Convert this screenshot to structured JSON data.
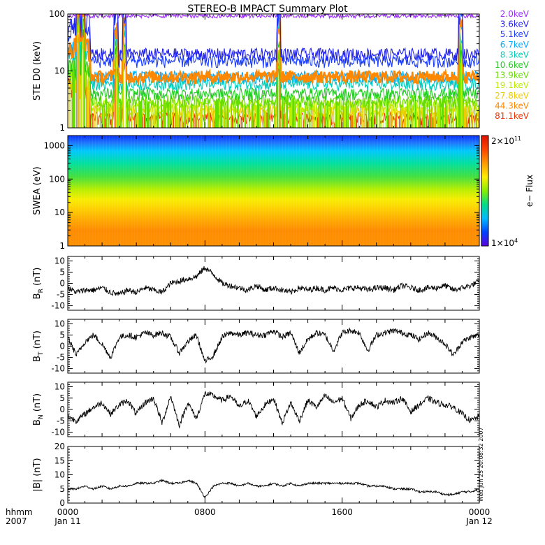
{
  "title": "STEREO-B IMPACT Summary Plot",
  "time_axis": {
    "row1_label": "hhmm",
    "row2_label": "2007",
    "ticks": [
      {
        "hour": 0,
        "label": "0000",
        "date": "Jan 11"
      },
      {
        "hour": 8,
        "label": "0800",
        "date": ""
      },
      {
        "hour": 16,
        "label": "1600",
        "date": ""
      },
      {
        "hour": 24,
        "label": "0000",
        "date": "Jan 12"
      }
    ],
    "range_hours": [
      0,
      24
    ]
  },
  "colors": {
    "frame": "#000000",
    "trace": "#000000",
    "background": "#ffffff"
  },
  "stamp": "Wed Jun 25 20:08:32 2007",
  "chart_data": [
    {
      "type": "line",
      "panel": "ste",
      "ylabel": "STE D0 (keV)",
      "yscale": "log",
      "ylim": [
        1,
        100
      ],
      "yticks": [
        {
          "v": 1,
          "label": "1"
        },
        {
          "v": 10,
          "label": "10"
        },
        {
          "v": 100,
          "label": "100"
        }
      ],
      "series": [
        {
          "name": "2.0keV",
          "color": "#9b30ff",
          "level": 100
        },
        {
          "name": "3.6keV",
          "color": "#2222ee",
          "level": 20
        },
        {
          "name": "5.1keV",
          "color": "#1a3cff",
          "level": 15
        },
        {
          "name": "6.7keV",
          "color": "#00aaff",
          "level": 8
        },
        {
          "name": "8.3keV",
          "color": "#00ccbb",
          "level": 6
        },
        {
          "name": "10.6keV",
          "color": "#22cc22",
          "level": 4
        },
        {
          "name": "13.9keV",
          "color": "#66dd00",
          "level": 3
        },
        {
          "name": "19.1keV",
          "color": "#bbee00",
          "level": 2.5
        },
        {
          "name": "27.8keV",
          "color": "#eecc00",
          "level": 2
        },
        {
          "name": "44.3keV",
          "color": "#ff8800",
          "level": 8
        },
        {
          "name": "81.1keV",
          "color": "#ee3300",
          "level": 1.5
        }
      ],
      "events_hours": [
        0.6,
        0.9,
        2.8,
        3.3,
        12.3,
        22.9
      ]
    },
    {
      "type": "heatmap",
      "panel": "swea",
      "ylabel": "SWEA (eV)",
      "yscale": "log",
      "ylim": [
        1,
        2000
      ],
      "yticks": [
        {
          "v": 1,
          "label": "1"
        },
        {
          "v": 10,
          "label": "10"
        },
        {
          "v": 100,
          "label": "100"
        },
        {
          "v": 1000,
          "label": "1000"
        }
      ],
      "colorbar": {
        "label": "e− Flux",
        "min_label": "1×10",
        "min_exp": "4",
        "max_label": "2×10",
        "max_exp": "11",
        "range": [
          10000,
          200000000000
        ],
        "stops": [
          "#5b00e0",
          "#0044ff",
          "#00bbff",
          "#00dd88",
          "#88ee00",
          "#ffee00",
          "#ff9900",
          "#ff4400",
          "#dd1100"
        ]
      },
      "energy_color_profile": [
        {
          "energy": 2000,
          "color": "#0a32ff"
        },
        {
          "energy": 1200,
          "color": "#1e78ff"
        },
        {
          "energy": 700,
          "color": "#00c8ff"
        },
        {
          "energy": 300,
          "color": "#00e0a0"
        },
        {
          "energy": 120,
          "color": "#40e040"
        },
        {
          "energy": 50,
          "color": "#b4ee00"
        },
        {
          "energy": 25,
          "color": "#f8ee00"
        },
        {
          "energy": 12,
          "color": "#ffcc00"
        },
        {
          "energy": 6,
          "color": "#ffaa00"
        },
        {
          "energy": 3,
          "color": "#ff8c00"
        },
        {
          "energy": 1,
          "color": "#ff9000"
        }
      ]
    },
    {
      "type": "line",
      "panel": "br",
      "ylabel": "B",
      "ylabel_sub": "R",
      "ylabel_unit": "(nT)",
      "ylim": [
        -12,
        12
      ],
      "yticks": [
        {
          "v": -10,
          "label": "-10"
        },
        {
          "v": -5,
          "label": "-5"
        },
        {
          "v": 0,
          "label": "0"
        },
        {
          "v": 5,
          "label": "5"
        },
        {
          "v": 10,
          "label": "10"
        }
      ],
      "x": [
        0,
        0.5,
        1,
        1.5,
        2,
        2.5,
        3,
        3.5,
        4,
        4.5,
        5,
        5.5,
        6,
        6.5,
        7,
        7.5,
        8,
        8.5,
        9,
        9.5,
        10,
        10.5,
        11,
        11.5,
        12,
        12.5,
        13,
        13.5,
        14,
        14.5,
        15,
        15.5,
        16,
        16.5,
        17,
        17.5,
        18,
        18.5,
        19,
        19.5,
        20,
        20.5,
        21,
        21.5,
        22,
        22.5,
        23,
        23.5,
        24
      ],
      "values": [
        -2,
        -4,
        -3,
        -3,
        -2,
        -4,
        -5,
        -3,
        -4,
        -2,
        -3,
        -4,
        0,
        1,
        2,
        3,
        7,
        4,
        0,
        -1,
        -2,
        -3,
        -1,
        -3,
        -2,
        -3,
        -4,
        -2,
        -3,
        -2,
        -3,
        -2,
        -3,
        -2,
        -2,
        -3,
        -2,
        -2,
        -3,
        -1,
        -2,
        -3,
        -2,
        -2,
        -1,
        -3,
        -2,
        -1,
        1
      ]
    },
    {
      "type": "line",
      "panel": "bt",
      "ylabel": "B",
      "ylabel_sub": "T",
      "ylabel_unit": "(nT)",
      "ylim": [
        -12,
        12
      ],
      "yticks": [
        {
          "v": -10,
          "label": "-10"
        },
        {
          "v": -5,
          "label": "-5"
        },
        {
          "v": 0,
          "label": "0"
        },
        {
          "v": 5,
          "label": "5"
        },
        {
          "v": 10,
          "label": "10"
        }
      ],
      "x": [
        0,
        0.5,
        1,
        1.5,
        2,
        2.5,
        3,
        3.5,
        4,
        4.5,
        5,
        5.5,
        6,
        6.5,
        7,
        7.5,
        8,
        8.5,
        9,
        9.5,
        10,
        10.5,
        11,
        11.5,
        12,
        12.5,
        13,
        13.5,
        14,
        14.5,
        15,
        15.5,
        16,
        16.5,
        17,
        17.5,
        18,
        18.5,
        19,
        19.5,
        20,
        20.5,
        21,
        21.5,
        22,
        22.5,
        23,
        23.5,
        24
      ],
      "values": [
        4,
        -4,
        2,
        5,
        1,
        -5,
        4,
        5,
        4,
        6,
        5,
        6,
        4,
        -3,
        2,
        5,
        -7,
        -4,
        4,
        6,
        5,
        6,
        5,
        5,
        7,
        4,
        6,
        -3,
        3,
        6,
        5,
        -2,
        6,
        7,
        6,
        -2,
        5,
        6,
        7,
        6,
        5,
        3,
        6,
        4,
        1,
        -4,
        2,
        4,
        5
      ]
    },
    {
      "type": "line",
      "panel": "bn",
      "ylabel": "B",
      "ylabel_sub": "N",
      "ylabel_unit": "(nT)",
      "ylim": [
        -12,
        12
      ],
      "yticks": [
        {
          "v": -10,
          "label": "-10"
        },
        {
          "v": -5,
          "label": "-5"
        },
        {
          "v": 0,
          "label": "0"
        },
        {
          "v": 5,
          "label": "5"
        },
        {
          "v": 10,
          "label": "10"
        }
      ],
      "x": [
        0,
        0.5,
        1,
        1.5,
        2,
        2.5,
        3,
        3.5,
        4,
        4.5,
        5,
        5.5,
        6,
        6.5,
        7,
        7.5,
        8,
        8.5,
        9,
        9.5,
        10,
        10.5,
        11,
        11.5,
        12,
        12.5,
        13,
        13.5,
        14,
        14.5,
        15,
        15.5,
        16,
        16.5,
        17,
        17.5,
        18,
        18.5,
        19,
        19.5,
        20,
        20.5,
        21,
        21.5,
        22,
        22.5,
        23,
        23.5,
        24
      ],
      "values": [
        -3,
        -5,
        -2,
        1,
        3,
        -2,
        2,
        4,
        -2,
        3,
        5,
        -6,
        6,
        -7,
        3,
        -4,
        7,
        6,
        4,
        6,
        1,
        4,
        -3,
        2,
        5,
        -6,
        3,
        -5,
        4,
        1,
        6,
        3,
        5,
        -4,
        2,
        4,
        1,
        4,
        3,
        5,
        -1,
        2,
        5,
        3,
        2,
        1,
        -2,
        -5,
        -3
      ]
    },
    {
      "type": "line",
      "panel": "bmag",
      "ylabel": "|B| (nT)",
      "ylim": [
        0,
        20
      ],
      "yticks": [
        {
          "v": 0,
          "label": "0"
        },
        {
          "v": 5,
          "label": "5"
        },
        {
          "v": 10,
          "label": "10"
        },
        {
          "v": 15,
          "label": "15"
        },
        {
          "v": 20,
          "label": "20"
        }
      ],
      "x": [
        0,
        0.5,
        1,
        1.5,
        2,
        2.5,
        3,
        3.5,
        4,
        4.5,
        5,
        5.5,
        6,
        6.5,
        7,
        7.5,
        8,
        8.5,
        9,
        9.5,
        10,
        10.5,
        11,
        11.5,
        12,
        12.5,
        13,
        13.5,
        14,
        14.5,
        15,
        15.5,
        16,
        16.5,
        17,
        17.5,
        18,
        18.5,
        19,
        19.5,
        20,
        20.5,
        21,
        21.5,
        22,
        22.5,
        23,
        23.5,
        24
      ],
      "values": [
        5,
        5,
        6,
        5,
        6,
        5,
        6,
        6,
        7,
        7,
        7,
        8,
        7,
        7,
        8,
        7,
        2,
        6,
        7,
        7,
        6,
        7,
        6,
        6,
        7,
        6,
        7,
        6,
        7,
        7,
        7,
        7,
        7,
        7,
        7,
        6,
        6,
        6,
        5,
        5,
        5,
        4,
        4,
        4,
        3,
        3,
        4,
        4,
        5
      ]
    }
  ]
}
